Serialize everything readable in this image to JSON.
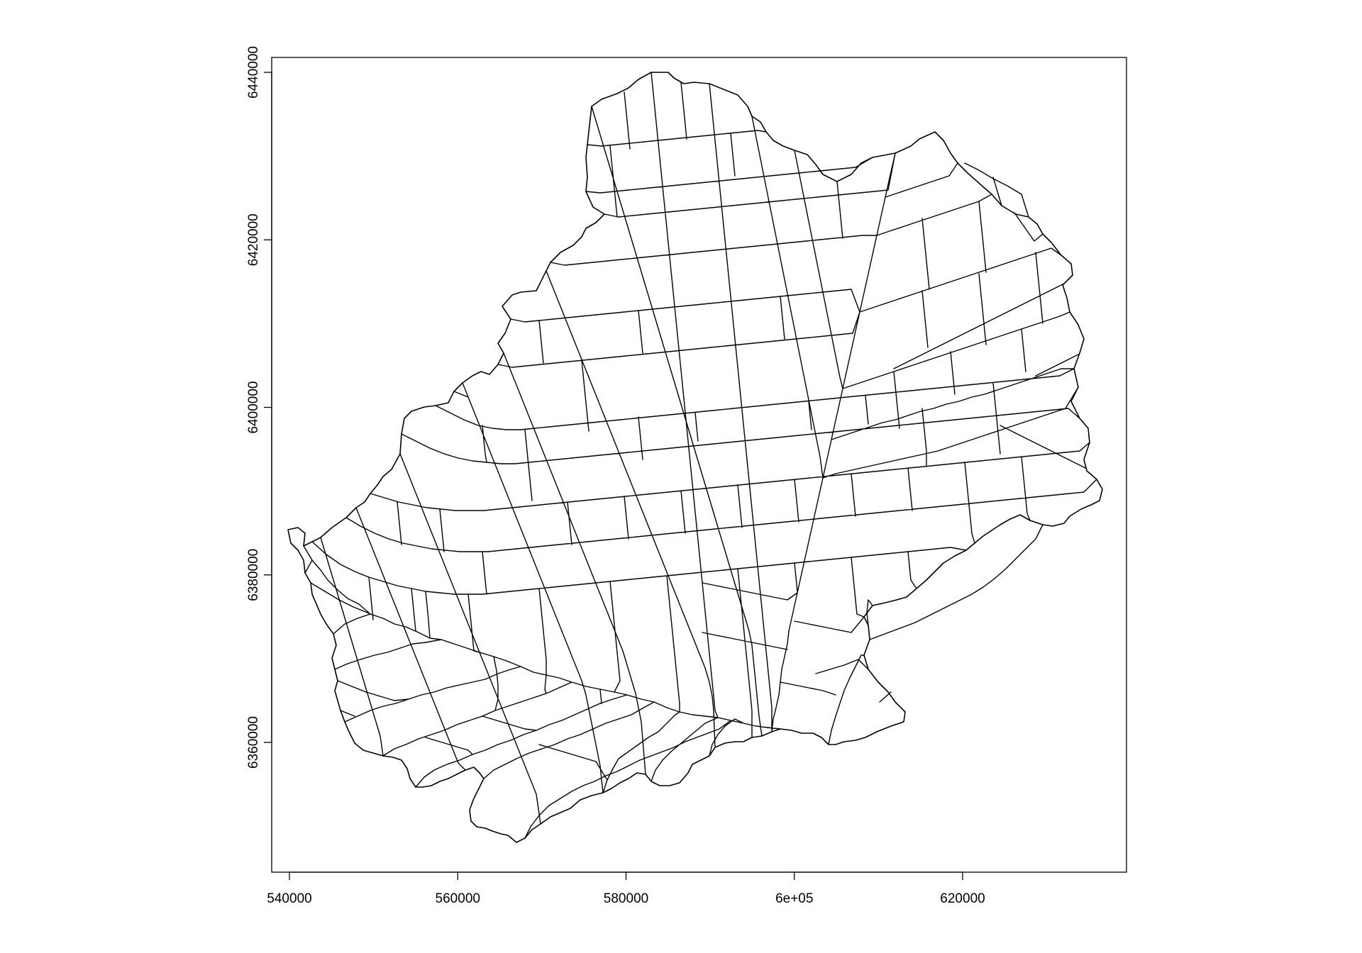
{
  "plot": {
    "type": "map",
    "description_free": true,
    "x_axis": {
      "range": [
        537500,
        636500
      ],
      "ticks": [
        {
          "value": 540000,
          "label": "540000"
        },
        {
          "value": 560000,
          "label": "560000"
        },
        {
          "value": 580000,
          "label": "580000"
        },
        {
          "value": 600000,
          "label": "6e+05"
        },
        {
          "value": 620000,
          "label": "620000"
        }
      ]
    },
    "y_axis": {
      "range": [
        6343500,
        6441000
      ],
      "ticks": [
        {
          "value": 6360000,
          "label": "6360000"
        },
        {
          "value": 6380000,
          "label": "6380000"
        },
        {
          "value": 6400000,
          "label": "6400000"
        },
        {
          "value": 6420000,
          "label": "6420000"
        },
        {
          "value": 6440000,
          "label": "6440000"
        }
      ]
    },
    "colors": {
      "stroke": "#000000",
      "fill": "#ffffff",
      "background": "#ffffff"
    }
  }
}
